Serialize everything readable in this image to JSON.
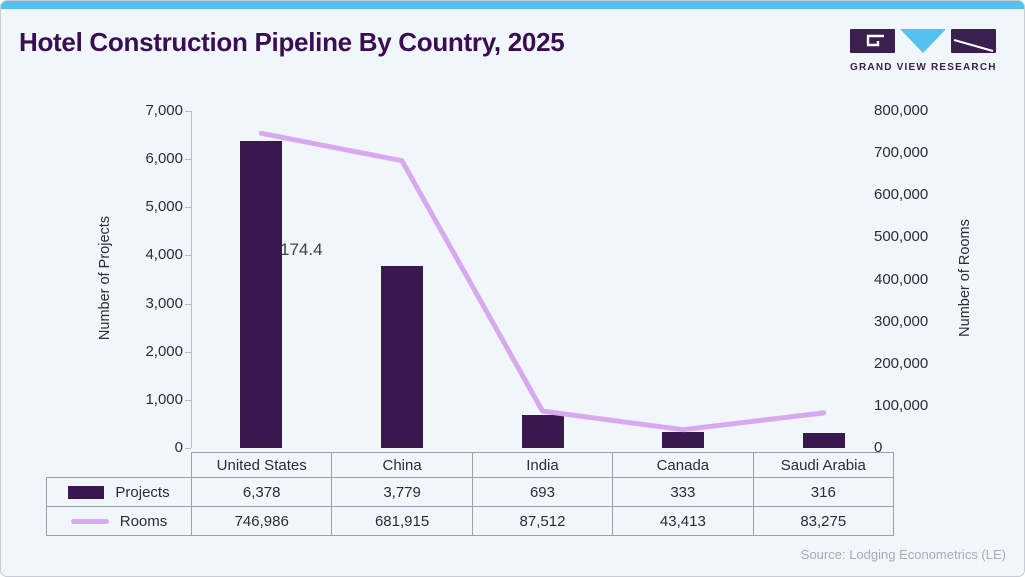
{
  "header": {
    "title": "Hotel Construction Pipeline By Country, 2025",
    "logo_text": "GRAND VIEW RESEARCH"
  },
  "footer": {
    "source": "Source: Lodging Econometrics (LE)"
  },
  "colors": {
    "top_strip": "#54c1f0",
    "background": "#f0f6fa",
    "title_text": "#3a0e52",
    "bar": "#38184e",
    "line": "#d9a9ef",
    "logo_purple": "#39204f",
    "logo_blue": "#54c1f0",
    "table_border": "#9aa0a8",
    "source_text": "#a6acb4"
  },
  "chart_data": {
    "type": "bar",
    "subtype": "combo-bar-line",
    "title": "Hotel Construction Pipeline By Country, 2025",
    "categories": [
      "United States",
      "China",
      "India",
      "Canada",
      "Saudi Arabia"
    ],
    "series": [
      {
        "name": "Projects",
        "chart": "bar",
        "axis": "left",
        "color": "#38184e",
        "values": [
          6378,
          3779,
          693,
          333,
          316
        ],
        "display": [
          "6,378",
          "3,779",
          "693",
          "333",
          "316"
        ]
      },
      {
        "name": "Rooms",
        "chart": "line",
        "axis": "right",
        "color": "#d9a9ef",
        "values": [
          746986,
          681915,
          87512,
          43413,
          83275
        ],
        "display": [
          "746,986",
          "681,915",
          "87,512",
          "43,413",
          "83,275"
        ]
      }
    ],
    "left_axis": {
      "label": "Number of Projects",
      "min": 0,
      "max": 7000,
      "ticks": [
        "0",
        "1,000",
        "2,000",
        "3,000",
        "4,000",
        "5,000",
        "6,000",
        "7,000"
      ]
    },
    "right_axis": {
      "label": "Number of Rooms",
      "min": 0,
      "max": 800000,
      "ticks": [
        "0",
        "100,000",
        "200,000",
        "300,000",
        "400,000",
        "500,000",
        "600,000",
        "700,000",
        "800,000"
      ]
    },
    "annotation": {
      "text": "174.4"
    },
    "grid": false,
    "legend_position": "table-left"
  }
}
